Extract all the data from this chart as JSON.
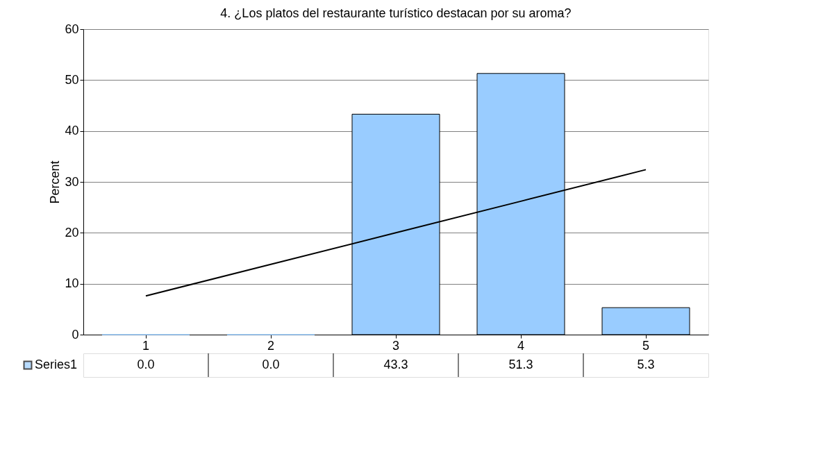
{
  "chart_data": {
    "type": "bar",
    "title": "4. ¿Los platos del restaurante turístico destacan por su aroma?",
    "ylabel": "Percent",
    "categories": [
      "1",
      "2",
      "3",
      "4",
      "5"
    ],
    "series": [
      {
        "name": "Series1",
        "color": "#99ccff",
        "values": [
          0.0,
          0.0,
          43.3,
          51.3,
          5.3
        ],
        "value_labels": [
          "0.0",
          "0.0",
          "43.3",
          "51.3",
          "5.3"
        ]
      },
      {
        "type": "line",
        "color": "#000000",
        "values": [
          7.6,
          13.8,
          20.0,
          26.2,
          32.4
        ]
      }
    ],
    "ylim": [
      0,
      60
    ],
    "yticks": [
      0,
      10,
      20,
      30,
      40,
      50,
      60
    ],
    "grid": "y",
    "legend": "bottom"
  }
}
